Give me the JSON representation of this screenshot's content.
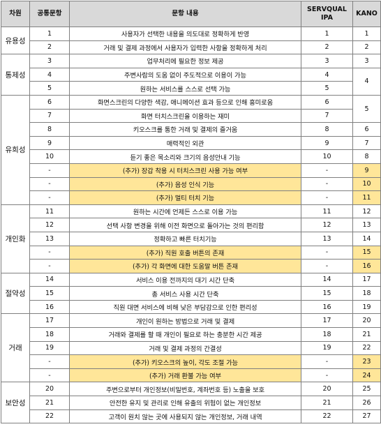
{
  "headers": {
    "category": "차원",
    "common": "공통문항",
    "content": "문항 내용",
    "ipa": "SERVQUAL IPA",
    "kano": "KANO"
  },
  "groups": [
    {
      "category": "유용성",
      "rows": [
        {
          "common": "1",
          "content": "사용자가 선택한 내용을 의도대로 정확하게 반영",
          "ipa": "1",
          "kano": "1"
        },
        {
          "common": "2",
          "content": "거래 및 결제 과정에서 사용자가 입력한 사항을 정확하게 처리",
          "ipa": "2",
          "kano": "2"
        }
      ]
    },
    {
      "category": "통제성",
      "rows": [
        {
          "common": "3",
          "content": "업무처리에 필요한 정보 제공",
          "ipa": "3",
          "kano": "3"
        },
        {
          "common": "4",
          "content": "주변사람의 도움 없이 주도적으로 이용이 가능",
          "ipa": "4",
          "kano": "4"
        },
        {
          "common": "5",
          "content": "원하는 서비스를 스스로 선택 가능",
          "ipa": "5"
        }
      ]
    },
    {
      "category": "유희성",
      "rows": [
        {
          "common": "6",
          "content": "화면스크린의 다양한 색감, 애니메이션 효과 등으로 인해 흥미로움",
          "ipa": "6",
          "kano": "5"
        },
        {
          "common": "7",
          "content": "화면 터치스크린을 이용하는 재미",
          "ipa": "7"
        },
        {
          "common": "8",
          "content": "키오스크를 통한 거래 및 결제의 즐거움",
          "ipa": "8",
          "kano": "6"
        },
        {
          "common": "9",
          "content": "매력적인 외관",
          "ipa": "9",
          "kano": "7"
        },
        {
          "common": "10",
          "content": "듣기 좋은 목소리와 크기의 음성안내 기능",
          "ipa": "10",
          "kano": "8"
        },
        {
          "common": "-",
          "content": "(추가) 장갑 착용 시 터치스크린 사용 가능 여부",
          "ipa": "-",
          "kano": "9",
          "added": true
        },
        {
          "common": "-",
          "content": "(추가) 음성 인식 기능",
          "ipa": "-",
          "kano": "10",
          "added": true
        },
        {
          "common": "-",
          "content": "(추가) 멀티 터치 기능",
          "ipa": "-",
          "kano": "11",
          "added": true
        }
      ]
    },
    {
      "category": "개인화",
      "rows": [
        {
          "common": "11",
          "content": "원하는 시간에 언제든 스스로 이용 가능",
          "ipa": "11",
          "kano": "12"
        },
        {
          "common": "12",
          "content": "선택 사항 변경을 위해 이전 화면으로 돌아가는 것의 편리함",
          "ipa": "12",
          "kano": "13"
        },
        {
          "common": "13",
          "content": "정확하고 빠른 터치기능",
          "ipa": "13",
          "kano": "14"
        },
        {
          "common": "-",
          "content": "(추가) 직원 호출 버튼의 존재",
          "ipa": "-",
          "kano": "15",
          "added": true
        },
        {
          "common": "-",
          "content": "(추가) 각 화면에 대한 도움말 버튼 존재",
          "ipa": "-",
          "kano": "16",
          "added": true
        }
      ]
    },
    {
      "category": "절약성",
      "rows": [
        {
          "common": "14",
          "content": "서비스 이용 전까지의 대기 시간 단축",
          "ipa": "14",
          "kano": "17"
        },
        {
          "common": "15",
          "content": "총 서비스 사용 시간 단축",
          "ipa": "15",
          "kano": "18"
        },
        {
          "common": "16",
          "content": "직원 대면 서비스에 비해 낮은 부담감으로 인한 편리성",
          "ipa": "16",
          "kano": "19"
        }
      ]
    },
    {
      "category": "거래",
      "rows": [
        {
          "common": "17",
          "content": "개인이 원하는 방법으로 거래 및 결제",
          "ipa": "17",
          "kano": "20"
        },
        {
          "common": "18",
          "content": "거래와 결제를 할 때 개인이 필요로 하는 충분한 시간 제공",
          "ipa": "18",
          "kano": "21"
        },
        {
          "common": "19",
          "content": "거래 및 결제 과정의 간결성",
          "ipa": "19",
          "kano": "22"
        },
        {
          "common": "-",
          "content": "(추가) 키오스크의 높이, 각도 조절 가능",
          "ipa": "-",
          "kano": "23",
          "added": true
        },
        {
          "common": "-",
          "content": "(추가) 거래 환불 가능 여부",
          "ipa": "-",
          "kano": "24",
          "added": true
        }
      ]
    },
    {
      "category": "보안성",
      "rows": [
        {
          "common": "20",
          "content": "주변으로부터 개인정보(비밀번호, 계좌번호 등) 노출을 보호",
          "ipa": "20",
          "kano": "25"
        },
        {
          "common": "21",
          "content": "안전한 유지 및 관리로 인해 유출의 위험이 없는 개인정보",
          "ipa": "21",
          "kano": "26"
        },
        {
          "common": "22",
          "content": "고객이 원치 않는 곳에 사용되지 않는 개인정보, 거래 내역",
          "ipa": "22",
          "kano": "27"
        }
      ]
    }
  ]
}
